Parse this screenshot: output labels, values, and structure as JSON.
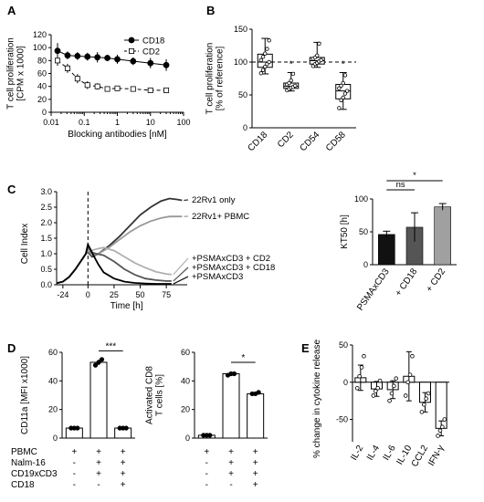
{
  "chart_data": [
    {
      "panel": "A",
      "type": "line",
      "xlabel": "Blocking antibodies [nM]",
      "ylabel": [
        "T cell proliferation",
        "[CPM x 1000]"
      ],
      "xscale": "log",
      "xlim": [
        0.01,
        100
      ],
      "ylim": [
        0,
        120
      ],
      "xticks": [
        0.01,
        0.1,
        1,
        10,
        100
      ],
      "xticklabels": [
        "0.01",
        "0.1",
        "1",
        "10",
        "100"
      ],
      "yticks": [
        0,
        20,
        40,
        60,
        80,
        100,
        120
      ],
      "legend_position": "top-right",
      "series": [
        {
          "name": "CD18",
          "marker": "filled-circle",
          "linestyle": "solid",
          "x": [
            0.0156,
            0.0313,
            0.0625,
            0.125,
            0.25,
            0.5,
            1,
            3,
            10,
            30
          ],
          "y": [
            95,
            88,
            87,
            86,
            85,
            84,
            82,
            79,
            76,
            73
          ],
          "err": [
            12,
            6,
            6,
            6,
            8,
            5,
            7,
            6,
            8,
            9
          ]
        },
        {
          "name": "CD2",
          "marker": "open-square",
          "linestyle": "dashed",
          "x": [
            0.0156,
            0.0313,
            0.0625,
            0.125,
            0.25,
            0.5,
            1,
            3,
            10,
            30
          ],
          "y": [
            80,
            68,
            52,
            42,
            40,
            36,
            37,
            36,
            34,
            34
          ],
          "err": [
            8,
            7,
            7,
            6,
            5,
            4,
            4,
            3,
            3,
            3
          ]
        }
      ]
    },
    {
      "panel": "B",
      "type": "box",
      "ylabel": [
        "T cell proliferation",
        "[% of reference]"
      ],
      "ylim": [
        0,
        150
      ],
      "yticks": [
        0,
        50,
        100,
        150
      ],
      "reference_line": 100,
      "categories": [
        "CD18",
        "CD2",
        "CD54",
        "CD58"
      ],
      "boxes": [
        {
          "min": 82,
          "q1": 92,
          "median": 100,
          "q3": 112,
          "max": 136,
          "points": [
            83,
            88,
            93,
            97,
            100,
            103,
            108,
            113,
            120,
            133
          ],
          "sig": ""
        },
        {
          "min": 56,
          "q1": 60,
          "median": 63,
          "q3": 68,
          "max": 84,
          "points": [
            57,
            59,
            61,
            62,
            64,
            66,
            68,
            72,
            82
          ],
          "sig": "*"
        },
        {
          "min": 92,
          "q1": 97,
          "median": 102,
          "q3": 107,
          "max": 130,
          "points": [
            94,
            97,
            99,
            101,
            103,
            105,
            107,
            110,
            128
          ],
          "sig": ""
        },
        {
          "min": 28,
          "q1": 44,
          "median": 56,
          "q3": 66,
          "max": 84,
          "points": [
            30,
            42,
            46,
            52,
            56,
            60,
            64,
            68,
            80
          ],
          "sig": "*"
        }
      ]
    },
    {
      "panel": "C",
      "type": "line",
      "xlabel": "Time [h]",
      "ylabel": "Cell Index",
      "xlim": [
        -30,
        95
      ],
      "ylim": [
        0,
        3.0
      ],
      "xticks": [
        -24,
        0,
        25,
        50,
        75
      ],
      "yticks": [
        0,
        0.5,
        1.0,
        1.5,
        2.0,
        2.5,
        3.0
      ],
      "yticklabels": [
        "0.0",
        "0.5",
        "1.0",
        "1.5",
        "2.0",
        "2.5",
        "3.0"
      ],
      "vline": 0,
      "series": [
        {
          "name": "22Rv1 only",
          "color": "#333333",
          "x": [
            -30,
            -24,
            -18,
            -12,
            -6,
            -2,
            0,
            4,
            10,
            20,
            30,
            40,
            50,
            60,
            70,
            78,
            85,
            90
          ],
          "y": [
            0.05,
            0.1,
            0.25,
            0.5,
            0.8,
            1.0,
            1.05,
            0.9,
            1.0,
            1.25,
            1.55,
            1.9,
            2.25,
            2.5,
            2.7,
            2.78,
            2.75,
            2.72
          ]
        },
        {
          "name": "22Rv1+ PBMC",
          "color": "#999999",
          "x": [
            -30,
            -24,
            -18,
            -12,
            -6,
            -2,
            0,
            4,
            10,
            20,
            30,
            40,
            50,
            60,
            70,
            78,
            85,
            90
          ],
          "y": [
            0.05,
            0.1,
            0.25,
            0.5,
            0.8,
            1.0,
            1.1,
            0.95,
            1.0,
            1.2,
            1.45,
            1.7,
            1.9,
            2.05,
            2.15,
            2.2,
            2.2,
            2.2
          ]
        },
        {
          "name": "+PSMAxCD3 + CD2",
          "color": "#b0b0b0",
          "x": [
            -30,
            -24,
            -18,
            -12,
            -6,
            -2,
            0,
            3,
            8,
            15,
            25,
            35,
            45,
            55,
            65,
            75,
            80
          ],
          "y": [
            0.05,
            0.1,
            0.25,
            0.5,
            0.8,
            1.0,
            1.2,
            1.1,
            1.15,
            1.2,
            1.1,
            0.9,
            0.7,
            0.55,
            0.42,
            0.35,
            0.33
          ]
        },
        {
          "name": "+PSMAxCD3 + CD18",
          "color": "#555555",
          "x": [
            -30,
            -24,
            -18,
            -12,
            -6,
            -2,
            0,
            3,
            8,
            15,
            25,
            35,
            45,
            55,
            65,
            75,
            80
          ],
          "y": [
            0.05,
            0.1,
            0.25,
            0.5,
            0.8,
            1.0,
            1.25,
            1.05,
            1.0,
            0.95,
            0.75,
            0.5,
            0.32,
            0.2,
            0.15,
            0.12,
            0.12
          ]
        },
        {
          "name": "+PSMAxCD3",
          "color": "#000000",
          "x": [
            -30,
            -24,
            -18,
            -12,
            -6,
            -2,
            0,
            3,
            6,
            10,
            15,
            25,
            35,
            45,
            55,
            65,
            75,
            80
          ],
          "y": [
            0.05,
            0.1,
            0.25,
            0.5,
            0.8,
            1.0,
            1.3,
            1.1,
            0.9,
            0.65,
            0.4,
            0.2,
            0.1,
            0.06,
            0.04,
            0.03,
            0.03,
            0.03
          ]
        }
      ]
    },
    {
      "panel": "C-inset",
      "type": "bar",
      "ylabel": "KT50 [h]",
      "ylim": [
        0,
        100
      ],
      "yticks": [
        0,
        50,
        100
      ],
      "categories": [
        "PSMAxCD3",
        "+ CD18",
        "+ CD2"
      ],
      "values": [
        46,
        57,
        88
      ],
      "err": [
        5,
        22,
        5
      ],
      "colors": [
        "#111111",
        "#555555",
        "#a0a0a0"
      ],
      "significance": [
        {
          "from": 0,
          "to": 1,
          "label": "ns"
        },
        {
          "from": 0,
          "to": 2,
          "label": "*"
        }
      ]
    },
    {
      "panel": "D-left",
      "type": "bar",
      "ylabel": "CD11a [MFI x1000]",
      "ylim": [
        0,
        60
      ],
      "yticks": [
        0,
        20,
        40,
        60
      ],
      "values": [
        7,
        53,
        7
      ],
      "err": [
        0.5,
        2,
        0.5
      ],
      "points": [
        [
          7,
          7,
          7
        ],
        [
          51,
          53,
          55
        ],
        [
          7,
          7,
          7
        ]
      ],
      "significance": [
        {
          "from": 1,
          "to": 2,
          "label": "***"
        }
      ]
    },
    {
      "panel": "D-right",
      "type": "bar",
      "ylabel": [
        "Activated CD8",
        "T cells [%]"
      ],
      "ylim": [
        0,
        60
      ],
      "yticks": [
        0,
        20,
        40,
        60
      ],
      "values": [
        2,
        45,
        31
      ],
      "err": [
        0.5,
        1,
        1
      ],
      "points": [
        [
          2,
          2,
          2
        ],
        [
          44,
          45,
          45
        ],
        [
          31,
          31,
          32
        ]
      ],
      "significance": [
        {
          "from": 1,
          "to": 2,
          "label": "*"
        }
      ]
    },
    {
      "panel": "E",
      "type": "bar",
      "ylabel": "% change in cytokine release",
      "ylim": [
        -80,
        50
      ],
      "yticks": [
        -50,
        0,
        50
      ],
      "categories": [
        "IL-2",
        "IL-4",
        "IL-6",
        "IL-10",
        "CCL2",
        "IFN-γ"
      ],
      "values": [
        6,
        -9,
        -10,
        8,
        -27,
        -62
      ],
      "err": [
        17,
        10,
        12,
        33,
        13,
        10
      ],
      "points": [
        [
          -8,
          8,
          20,
          35
        ],
        [
          -18,
          -12,
          -8,
          2
        ],
        [
          -25,
          -15,
          -5,
          5
        ],
        [
          -18,
          0,
          10,
          35
        ],
        [
          -40,
          -30,
          -22,
          -15
        ],
        [
          -72,
          -65,
          -60,
          -50
        ]
      ]
    }
  ],
  "panel_letters": [
    "A",
    "B",
    "C",
    "D",
    "E"
  ],
  "table_D": {
    "rows": [
      {
        "label": "PBMC",
        "values": [
          "+",
          "+",
          "+"
        ]
      },
      {
        "label": "Nalm-16",
        "values": [
          "-",
          "+",
          "+"
        ]
      },
      {
        "label": "CD19xCD3",
        "values": [
          "-",
          "+",
          "+"
        ]
      },
      {
        "label": "CD18",
        "values": [
          "-",
          "-",
          "+"
        ]
      }
    ]
  },
  "colors": {
    "axis": "#000000",
    "box_fill": "#ffffff",
    "bar_white": "#ffffff"
  }
}
